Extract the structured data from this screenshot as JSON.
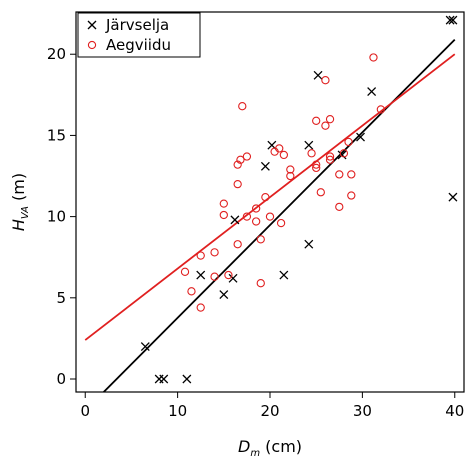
{
  "chart_data": {
    "type": "scatter",
    "xlim": [
      -1,
      41
    ],
    "ylim": [
      -0.8,
      22.6
    ],
    "x_ticks": [
      0,
      10,
      20,
      30,
      40
    ],
    "y_ticks": [
      0,
      5,
      10,
      15,
      20
    ],
    "xlabel": {
      "main": "D",
      "sub": "m",
      "unit": "(cm)"
    },
    "ylabel": {
      "main": "H",
      "sub": "VA",
      "unit": "(m)"
    },
    "grid": false,
    "legend": "top-left",
    "series": [
      {
        "name": "Järvselja",
        "marker": "x",
        "color": "#000000",
        "points": [
          [
            6.5,
            2.0
          ],
          [
            8.0,
            0.0
          ],
          [
            8.5,
            0.0
          ],
          [
            11.0,
            0.0
          ],
          [
            12.5,
            6.4
          ],
          [
            15.0,
            5.2
          ],
          [
            16.0,
            6.2
          ],
          [
            16.2,
            9.8
          ],
          [
            19.5,
            13.1
          ],
          [
            20.2,
            14.4
          ],
          [
            21.5,
            6.4
          ],
          [
            24.2,
            8.3
          ],
          [
            24.2,
            14.4
          ],
          [
            25.2,
            18.7
          ],
          [
            27.8,
            13.8
          ],
          [
            29.8,
            14.9
          ],
          [
            31.0,
            17.7
          ],
          [
            39.5,
            22.1
          ],
          [
            39.8,
            22.1
          ],
          [
            39.8,
            11.2
          ]
        ],
        "fit": {
          "x": [
            2.0,
            40.0
          ],
          "y": [
            -0.8,
            20.9
          ]
        }
      },
      {
        "name": "Aegviidu",
        "marker": "o",
        "color": "#e02020",
        "points": [
          [
            10.8,
            6.6
          ],
          [
            11.5,
            5.4
          ],
          [
            12.5,
            4.4
          ],
          [
            12.5,
            7.6
          ],
          [
            14.0,
            7.8
          ],
          [
            14.0,
            6.3
          ],
          [
            15.0,
            10.1
          ],
          [
            15.0,
            10.8
          ],
          [
            15.5,
            6.4
          ],
          [
            16.5,
            8.3
          ],
          [
            16.5,
            12.0
          ],
          [
            16.5,
            13.2
          ],
          [
            16.8,
            13.5
          ],
          [
            17.0,
            16.8
          ],
          [
            17.5,
            10.0
          ],
          [
            17.5,
            13.7
          ],
          [
            18.5,
            10.5
          ],
          [
            18.5,
            9.7
          ],
          [
            19.0,
            8.6
          ],
          [
            19.0,
            5.9
          ],
          [
            19.5,
            11.2
          ],
          [
            20.0,
            10.0
          ],
          [
            20.5,
            14.0
          ],
          [
            21.0,
            14.2
          ],
          [
            21.2,
            9.6
          ],
          [
            21.5,
            13.8
          ],
          [
            22.2,
            12.9
          ],
          [
            22.2,
            12.5
          ],
          [
            24.5,
            13.9
          ],
          [
            25.0,
            13.0
          ],
          [
            25.0,
            15.9
          ],
          [
            25.0,
            13.2
          ],
          [
            25.5,
            11.5
          ],
          [
            26.0,
            15.6
          ],
          [
            26.0,
            18.4
          ],
          [
            26.5,
            13.5
          ],
          [
            26.5,
            13.7
          ],
          [
            26.5,
            16.0
          ],
          [
            27.5,
            12.6
          ],
          [
            27.5,
            10.6
          ],
          [
            28.0,
            13.9
          ],
          [
            28.5,
            14.6
          ],
          [
            28.8,
            12.6
          ],
          [
            28.8,
            11.3
          ],
          [
            31.2,
            19.8
          ],
          [
            32.0,
            16.6
          ]
        ],
        "fit": {
          "x": [
            0.0,
            40.0
          ],
          "y": [
            2.4,
            20.0
          ]
        }
      }
    ]
  }
}
